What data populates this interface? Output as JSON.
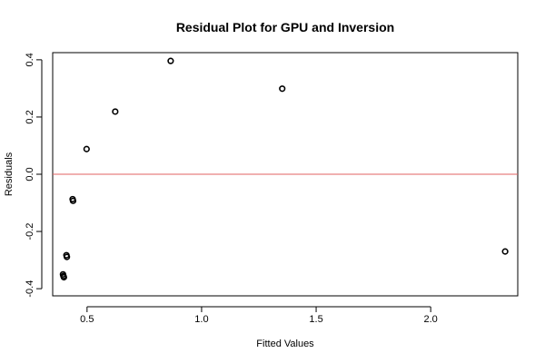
{
  "chart_data": {
    "type": "scatter",
    "title": "Residual Plot for GPU and Inversion",
    "xlabel": "Fitted Values",
    "ylabel": "Residuals",
    "xlim": [
      0.35,
      2.38
    ],
    "ylim": [
      -0.425,
      0.425
    ],
    "x_ticks": [
      0.5,
      1.0,
      1.5,
      2.0
    ],
    "x_tick_labels": [
      "0.5",
      "1.0",
      "1.5",
      "2.0"
    ],
    "y_ticks": [
      -0.4,
      -0.2,
      0.0,
      0.2,
      0.4
    ],
    "y_tick_labels": [
      "-0.4",
      "-0.2",
      "0.0",
      "0.2",
      "0.4"
    ],
    "reference_line": {
      "y": 0.0,
      "color": "#e06060"
    },
    "grid": false,
    "legend": "none",
    "marker": "open-circle",
    "point_color": "#000000",
    "points": [
      {
        "x": 0.395,
        "y": -0.35
      },
      {
        "x": 0.397,
        "y": -0.356
      },
      {
        "x": 0.399,
        "y": -0.36
      },
      {
        "x": 0.41,
        "y": -0.283
      },
      {
        "x": 0.412,
        "y": -0.289
      },
      {
        "x": 0.437,
        "y": -0.087
      },
      {
        "x": 0.439,
        "y": -0.093
      },
      {
        "x": 0.498,
        "y": 0.088
      },
      {
        "x": 0.623,
        "y": 0.219
      },
      {
        "x": 0.865,
        "y": 0.396
      },
      {
        "x": 1.352,
        "y": 0.299
      },
      {
        "x": 2.325,
        "y": -0.27
      }
    ]
  }
}
